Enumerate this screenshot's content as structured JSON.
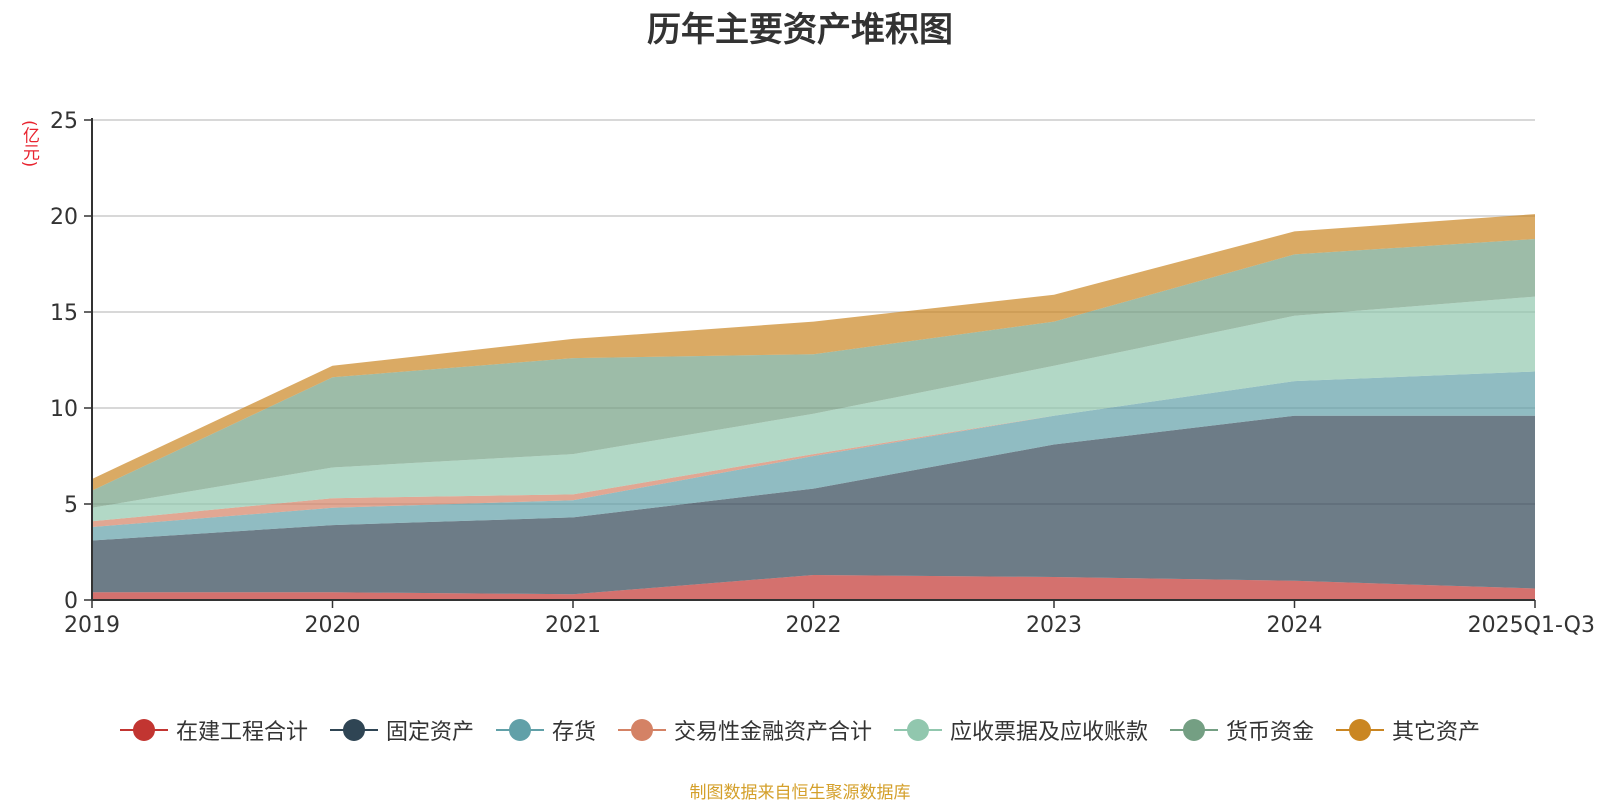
{
  "chart_data": {
    "type": "area",
    "stacked": true,
    "title": "历年主要资产堆积图",
    "ylabel": "(亿元)",
    "xlabel": "",
    "ylim": [
      0,
      25
    ],
    "yticks": [
      0,
      5,
      10,
      15,
      20,
      25
    ],
    "grid": true,
    "legend_position": "bottom",
    "categories": [
      "2019",
      "2020",
      "2021",
      "2022",
      "2023",
      "2024",
      "2025Q1-Q3"
    ],
    "series": [
      {
        "name": "在建工程合计",
        "color": "#c23531",
        "values": [
          0.4,
          0.4,
          0.3,
          1.3,
          1.2,
          1.0,
          0.6
        ]
      },
      {
        "name": "固定资产",
        "color": "#2f4554",
        "values": [
          2.7,
          3.5,
          4.0,
          4.5,
          6.9,
          8.6,
          9.0
        ]
      },
      {
        "name": "存货",
        "color": "#61a0a8",
        "values": [
          0.7,
          0.9,
          0.9,
          1.7,
          1.5,
          1.8,
          2.3
        ]
      },
      {
        "name": "交易性金融资产合计",
        "color": "#d48265",
        "values": [
          0.3,
          0.5,
          0.3,
          0.1,
          0.0,
          0.0,
          0.0
        ]
      },
      {
        "name": "应收票据及应收账款",
        "color": "#91c7ae",
        "values": [
          0.7,
          1.6,
          2.1,
          2.1,
          2.6,
          3.4,
          3.9
        ]
      },
      {
        "name": "货币资金",
        "color": "#749f83",
        "values": [
          0.9,
          4.7,
          5.0,
          3.1,
          2.3,
          3.2,
          3.0
        ]
      },
      {
        "name": "其它资产",
        "color": "#ca8622",
        "values": [
          0.6,
          0.6,
          1.0,
          1.7,
          1.4,
          1.2,
          1.3
        ]
      }
    ]
  },
  "source_note": "制图数据来自恒生聚源数据库"
}
